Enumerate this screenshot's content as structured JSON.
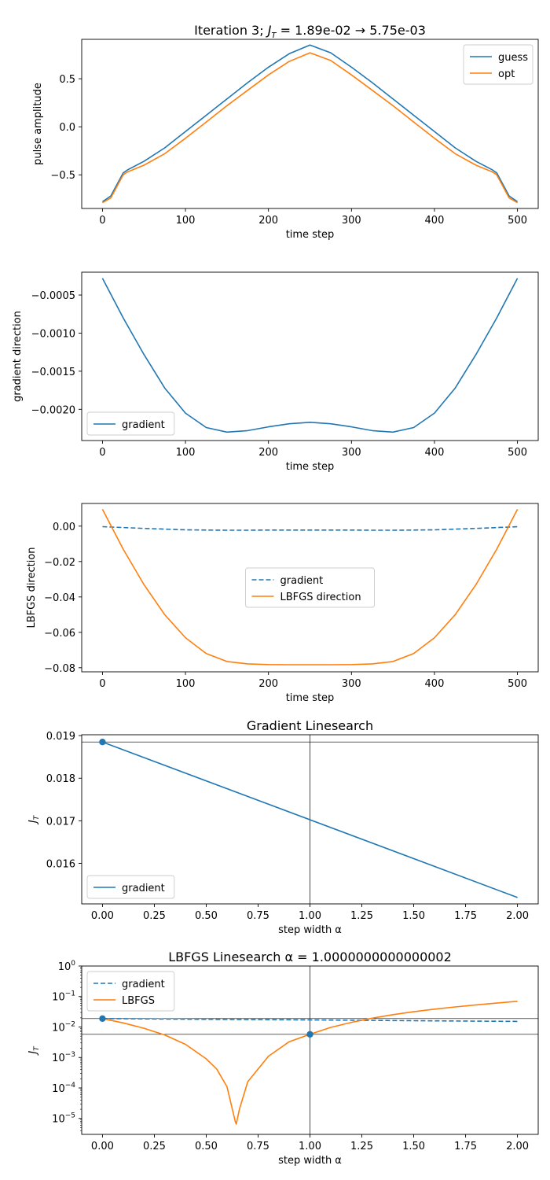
{
  "colors": {
    "blue": "#1f77b4",
    "orange": "#ff7f0e",
    "ref_line": "#000000"
  },
  "chart_data": [
    {
      "type": "line",
      "title": "Iteration 3; J_T = 1.89e-02 → 5.75e-03",
      "title_main": "Iteration 3; ",
      "title_sym": "J",
      "title_sub": "T",
      "title_rest": " = 1.89e-02 → 5.75e-03",
      "xlabel": "time step",
      "ylabel": "pulse amplitude",
      "xlim": [
        -25,
        525
      ],
      "ylim": [
        -0.85,
        0.91
      ],
      "xticks": [
        0,
        100,
        200,
        300,
        400,
        500
      ],
      "xtick_labels": [
        "0",
        "100",
        "200",
        "300",
        "400",
        "500"
      ],
      "yticks": [
        -0.5,
        0.0,
        0.5
      ],
      "ytick_labels": [
        "−0.5",
        "0.0",
        "0.5"
      ],
      "legend_loc": "upper right",
      "x": [
        0,
        10,
        20,
        25,
        30,
        50,
        75,
        100,
        125,
        150,
        175,
        200,
        225,
        250,
        275,
        300,
        325,
        350,
        375,
        400,
        425,
        450,
        470,
        475,
        480,
        490,
        500
      ],
      "series": [
        {
          "name": "guess",
          "color": "blue",
          "style": "solid",
          "values": [
            -0.78,
            -0.72,
            -0.56,
            -0.48,
            -0.45,
            -0.36,
            -0.22,
            -0.05,
            0.12,
            0.29,
            0.46,
            0.62,
            0.76,
            0.85,
            0.77,
            0.62,
            0.46,
            0.29,
            0.12,
            -0.05,
            -0.22,
            -0.36,
            -0.45,
            -0.48,
            -0.56,
            -0.72,
            -0.78
          ]
        },
        {
          "name": "opt",
          "color": "orange",
          "style": "solid",
          "values": [
            -0.79,
            -0.74,
            -0.58,
            -0.5,
            -0.47,
            -0.4,
            -0.28,
            -0.12,
            0.05,
            0.22,
            0.38,
            0.54,
            0.68,
            0.77,
            0.69,
            0.54,
            0.38,
            0.22,
            0.05,
            -0.12,
            -0.28,
            -0.4,
            -0.47,
            -0.5,
            -0.58,
            -0.74,
            -0.79
          ]
        }
      ]
    },
    {
      "type": "line",
      "xlabel": "time step",
      "ylabel": "gradient direction",
      "xlim": [
        -25,
        525
      ],
      "ylim": [
        -0.00241,
        -0.0002
      ],
      "xticks": [
        0,
        100,
        200,
        300,
        400,
        500
      ],
      "xtick_labels": [
        "0",
        "100",
        "200",
        "300",
        "400",
        "500"
      ],
      "yticks": [
        -0.002,
        -0.0015,
        -0.001,
        -0.0005
      ],
      "ytick_labels": [
        "−0.0020",
        "−0.0015",
        "−0.0010",
        "−0.0005"
      ],
      "legend_loc": "lower left",
      "x": [
        0,
        25,
        50,
        75,
        100,
        125,
        150,
        175,
        200,
        225,
        250,
        275,
        300,
        325,
        350,
        375,
        400,
        425,
        450,
        475,
        500
      ],
      "series": [
        {
          "name": "gradient",
          "color": "blue",
          "style": "solid",
          "values": [
            -0.00028,
            -0.0008,
            -0.00128,
            -0.00172,
            -0.00205,
            -0.00224,
            -0.0023,
            -0.00228,
            -0.00223,
            -0.00219,
            -0.00217,
            -0.00219,
            -0.00223,
            -0.00228,
            -0.0023,
            -0.00224,
            -0.00205,
            -0.00172,
            -0.00128,
            -0.0008,
            -0.00028
          ]
        }
      ]
    },
    {
      "type": "line",
      "xlabel": "time step",
      "ylabel": "LBFGS direction",
      "xlim": [
        -25,
        525
      ],
      "ylim": [
        -0.0823,
        0.0128
      ],
      "xticks": [
        0,
        100,
        200,
        300,
        400,
        500
      ],
      "xtick_labels": [
        "0",
        "100",
        "200",
        "300",
        "400",
        "500"
      ],
      "yticks": [
        -0.08,
        -0.06,
        -0.04,
        -0.02,
        0.0
      ],
      "ytick_labels": [
        "−0.08",
        "−0.06",
        "−0.04",
        "−0.02",
        "0.00"
      ],
      "legend_loc": "center",
      "x": [
        0,
        25,
        50,
        75,
        100,
        125,
        150,
        175,
        200,
        225,
        250,
        275,
        300,
        325,
        350,
        375,
        400,
        425,
        450,
        475,
        500
      ],
      "series": [
        {
          "name": "gradient",
          "color": "blue",
          "style": "dashed",
          "values": [
            -0.0003,
            -0.0008,
            -0.0013,
            -0.0017,
            -0.0021,
            -0.0022,
            -0.0023,
            -0.0023,
            -0.0022,
            -0.0022,
            -0.0022,
            -0.0022,
            -0.0022,
            -0.0023,
            -0.0023,
            -0.0022,
            -0.0021,
            -0.0017,
            -0.0013,
            -0.0008,
            -0.0003
          ]
        },
        {
          "name": "LBFGS direction",
          "color": "orange",
          "style": "solid",
          "values": [
            0.0095,
            -0.013,
            -0.033,
            -0.05,
            -0.063,
            -0.072,
            -0.0765,
            -0.0778,
            -0.0782,
            -0.0783,
            -0.0783,
            -0.0783,
            -0.0782,
            -0.0778,
            -0.0765,
            -0.072,
            -0.063,
            -0.05,
            -0.033,
            -0.013,
            0.0095
          ]
        }
      ]
    },
    {
      "type": "line",
      "title": "Gradient Linesearch",
      "xlabel": "step width α",
      "ylabel": "J_T",
      "ylabel_sym": "J",
      "ylabel_sub": "T",
      "xlim": [
        -0.1,
        2.1
      ],
      "ylim": [
        0.01505,
        0.01902
      ],
      "xticks": [
        0,
        0.25,
        0.5,
        0.75,
        1.0,
        1.25,
        1.5,
        1.75,
        2.0
      ],
      "xtick_labels": [
        "0.00",
        "0.25",
        "0.50",
        "0.75",
        "1.00",
        "1.25",
        "1.50",
        "1.75",
        "2.00"
      ],
      "yticks": [
        0.016,
        0.017,
        0.018,
        0.019
      ],
      "ytick_labels": [
        "0.016",
        "0.017",
        "0.018",
        "0.019"
      ],
      "legend_loc": "lower left",
      "hline": 0.01885,
      "vline": 1.0,
      "x": [
        0,
        2
      ],
      "series": [
        {
          "name": "gradient",
          "color": "blue",
          "style": "solid",
          "values": [
            0.01885,
            0.0152
          ]
        }
      ],
      "markers": [
        {
          "x": 0,
          "y": 0.01885,
          "color": "blue"
        }
      ]
    },
    {
      "type": "line",
      "title": "LBFGS Linesearch α = 1.0000000000000002",
      "xlabel": "step width α",
      "ylabel": "J_T",
      "ylabel_sym": "J",
      "ylabel_sub": "T",
      "yscale": "log",
      "xlim": [
        -0.1,
        2.1
      ],
      "ylim": [
        3e-06,
        1.0
      ],
      "xticks": [
        0,
        0.25,
        0.5,
        0.75,
        1.0,
        1.25,
        1.5,
        1.75,
        2.0
      ],
      "xtick_labels": [
        "0.00",
        "0.25",
        "0.50",
        "0.75",
        "1.00",
        "1.25",
        "1.50",
        "1.75",
        "2.00"
      ],
      "ytick_exps": [
        "0",
        "−1",
        "−2",
        "−3",
        "−4",
        "−5"
      ],
      "legend_loc": "upper left",
      "hlines": [
        0.01885,
        0.00575
      ],
      "vline": 1.0,
      "series": [
        {
          "name": "gradient",
          "color": "blue",
          "style": "dashed",
          "x": [
            0,
            0.5,
            1.0,
            1.5,
            2.0
          ],
          "values": [
            0.01885,
            0.01795,
            0.01705,
            0.01613,
            0.0152
          ]
        },
        {
          "name": "LBFGS",
          "color": "orange",
          "style": "solid",
          "x": [
            0,
            0.1,
            0.2,
            0.3,
            0.4,
            0.5,
            0.55,
            0.6,
            0.62,
            0.64,
            0.645,
            0.66,
            0.7,
            0.8,
            0.9,
            1.0,
            1.1,
            1.2,
            1.3,
            1.4,
            1.5,
            1.6,
            1.7,
            1.8,
            1.9,
            2.0
          ],
          "values": [
            0.01885,
            0.0136,
            0.0091,
            0.0055,
            0.0027,
            0.0009,
            0.00042,
            0.00011,
            3e-05,
            8e-06,
            6.5e-06,
            2e-05,
            0.00016,
            0.0011,
            0.0033,
            0.00575,
            0.0097,
            0.0142,
            0.0195,
            0.0254,
            0.0317,
            0.0385,
            0.0456,
            0.053,
            0.061,
            0.07
          ]
        }
      ],
      "markers": [
        {
          "x": 0,
          "y": 0.01885,
          "color": "blue"
        },
        {
          "x": 1.0,
          "y": 0.00575,
          "color": "blue"
        }
      ]
    }
  ]
}
